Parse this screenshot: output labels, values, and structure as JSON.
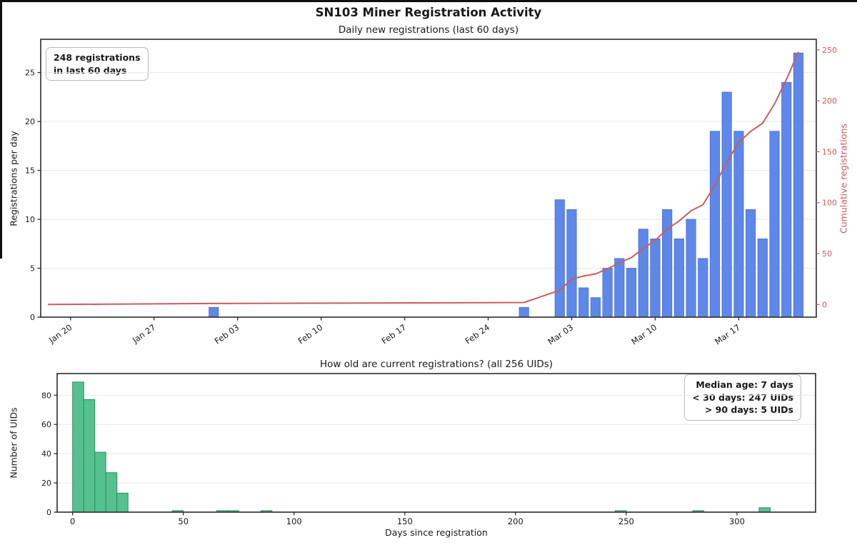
{
  "figure": {
    "title": "SN103 Miner Registration Activity"
  },
  "chart_data": [
    {
      "type": "bar",
      "title": "Daily new registrations (last 60 days)",
      "ylabel": "Registrations per day",
      "y2label": "Cumulative registrations",
      "annotation_lines": [
        "248 registrations",
        "in last 60 days"
      ],
      "total_registrations_60d": 248,
      "bar_color": "#5e87ea",
      "bar_edge_color": "#4a71d6",
      "line_color": "#cd5c5c",
      "series": [
        {
          "name": "Registrations per day",
          "type": "bar",
          "axis": "left"
        },
        {
          "name": "Cumulative registrations",
          "type": "line",
          "axis": "right"
        }
      ],
      "bars": [
        {
          "date": "Feb 01",
          "day": 12,
          "value": 1
        },
        {
          "date": "Feb 27",
          "day": 38,
          "value": 1
        },
        {
          "date": "Mar 02",
          "day": 41,
          "value": 12
        },
        {
          "date": "Mar 03",
          "day": 42,
          "value": 11
        },
        {
          "date": "Mar 04",
          "day": 43,
          "value": 3
        },
        {
          "date": "Mar 05",
          "day": 44,
          "value": 2
        },
        {
          "date": "Mar 06",
          "day": 45,
          "value": 5
        },
        {
          "date": "Mar 07",
          "day": 46,
          "value": 6
        },
        {
          "date": "Mar 08",
          "day": 47,
          "value": 5
        },
        {
          "date": "Mar 09",
          "day": 48,
          "value": 9
        },
        {
          "date": "Mar 10",
          "day": 49,
          "value": 8
        },
        {
          "date": "Mar 11",
          "day": 50,
          "value": 11
        },
        {
          "date": "Mar 12",
          "day": 51,
          "value": 8
        },
        {
          "date": "Mar 13",
          "day": 52,
          "value": 10
        },
        {
          "date": "Mar 14",
          "day": 53,
          "value": 6
        },
        {
          "date": "Mar 15",
          "day": 54,
          "value": 19
        },
        {
          "date": "Mar 16",
          "day": 55,
          "value": 23
        },
        {
          "date": "Mar 17",
          "day": 56,
          "value": 19
        },
        {
          "date": "Mar 18",
          "day": 57,
          "value": 11
        },
        {
          "date": "Mar 19",
          "day": 58,
          "value": 8
        },
        {
          "date": "Mar 20",
          "day": 59,
          "value": 19
        },
        {
          "date": "Mar 21",
          "day": 60,
          "value": 24
        },
        {
          "date": "Mar 22",
          "day": 61,
          "value": 27
        }
      ],
      "x_ticks": [
        {
          "day": 0,
          "label": "Jan 20"
        },
        {
          "day": 7,
          "label": "Jan 27"
        },
        {
          "day": 14,
          "label": "Feb 03"
        },
        {
          "day": 21,
          "label": "Feb 10"
        },
        {
          "day": 28,
          "label": "Feb 17"
        },
        {
          "day": 35,
          "label": "Feb 24"
        },
        {
          "day": 42,
          "label": "Mar 03"
        },
        {
          "day": 49,
          "label": "Mar 10"
        },
        {
          "day": 56,
          "label": "Mar 17"
        }
      ],
      "y_ticks": [
        0,
        5,
        10,
        15,
        20,
        25
      ],
      "y2_ticks": [
        0,
        50,
        100,
        150,
        200,
        250
      ],
      "xlim": [
        -2.5,
        62.5
      ],
      "ylim": [
        0,
        28.4
      ],
      "y2lim": [
        -12.4,
        260.4
      ],
      "grid": true,
      "legend": "none"
    },
    {
      "type": "histogram",
      "title": "How old are current registrations? (all 256 UIDs)",
      "xlabel": "Days since registration",
      "ylabel": "Number of UIDs",
      "annotation_lines": [
        "Median age: 7 days",
        "< 30 days: 247 UIDs",
        "> 90 days: 5 UIDs"
      ],
      "total_uids": 256,
      "bar_color": "#56c190",
      "bar_edge_color": "#2e8b57",
      "bin_width_days": 5,
      "bins": [
        {
          "start": 0,
          "end": 5,
          "count": 89
        },
        {
          "start": 5,
          "end": 10,
          "count": 77
        },
        {
          "start": 10,
          "end": 15,
          "count": 41
        },
        {
          "start": 15,
          "end": 20,
          "count": 27
        },
        {
          "start": 20,
          "end": 25,
          "count": 13
        },
        {
          "start": 45,
          "end": 50,
          "count": 1
        },
        {
          "start": 65,
          "end": 70,
          "count": 1
        },
        {
          "start": 70,
          "end": 75,
          "count": 1
        },
        {
          "start": 85,
          "end": 90,
          "count": 1
        },
        {
          "start": 245,
          "end": 250,
          "count": 1
        },
        {
          "start": 280,
          "end": 285,
          "count": 1
        },
        {
          "start": 310,
          "end": 315,
          "count": 3
        }
      ],
      "x_ticks": [
        0,
        50,
        100,
        150,
        200,
        250,
        300
      ],
      "y_ticks": [
        0,
        20,
        40,
        60,
        80
      ],
      "xlim": [
        -7,
        335.5
      ],
      "ylim": [
        0,
        94.8
      ],
      "grid": true,
      "legend": "none"
    }
  ]
}
